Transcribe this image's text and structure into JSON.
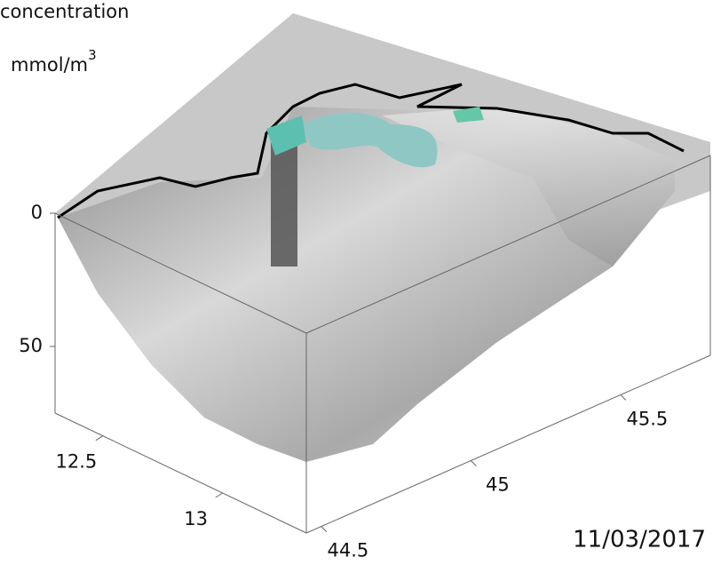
{
  "chart_data": {
    "type": "surface3d",
    "title": "concentration",
    "unit": "mmol/m",
    "unit_superscript": "3",
    "annotation": "11/03/2017",
    "xlim": [
      12.3,
      13.35
    ],
    "xticks": [
      12.5,
      13
    ],
    "ylim": [
      44.45,
      45.8
    ],
    "yticks": [
      44.5,
      45,
      45.5
    ],
    "zlim": [
      0,
      75
    ],
    "zticks": [
      0,
      50
    ]
  }
}
